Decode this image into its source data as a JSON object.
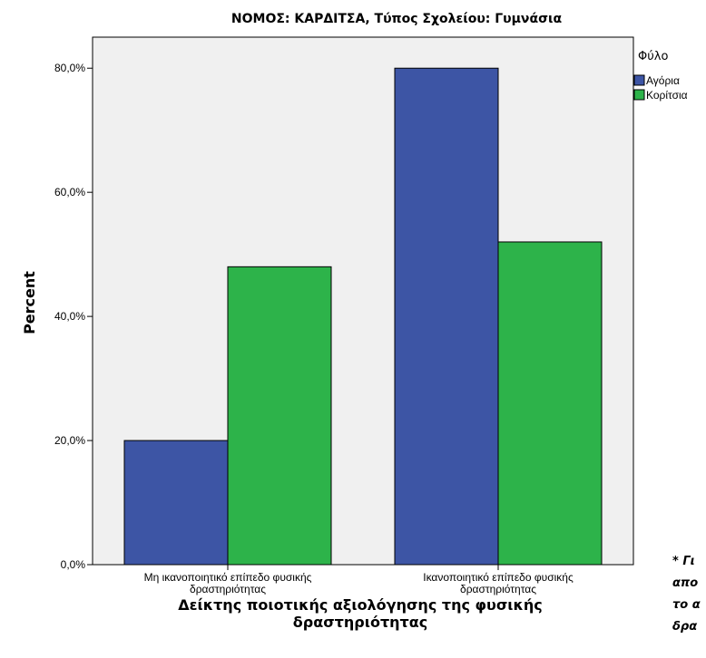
{
  "chart_data": {
    "type": "bar",
    "title": "ΝΟΜΟΣ: ΚΑΡΔΙΤΣΑ, Τύπος Σχολείου: Γυμνάσια",
    "xlabel_line1": "Δείκτης ποιοτικής αξιολόγησης της φυσικής",
    "xlabel_line2": "δραστηριότητας",
    "ylabel": "Percent",
    "categories": [
      {
        "line1": "Μη ικανοποιητικό επίπεδο φυσικής",
        "line2": "δραστηριότητας"
      },
      {
        "line1": "Ικανοποιητικό επίπεδο φυσικής",
        "line2": "δραστηριότητας"
      }
    ],
    "series": [
      {
        "name": "Αγόρια",
        "color": "#3d55a5",
        "values": [
          20,
          80
        ]
      },
      {
        "name": "Κορίτσια",
        "color": "#2db34a",
        "values": [
          48,
          52
        ]
      }
    ],
    "ylim": [
      0,
      85
    ],
    "yticks": [
      {
        "value": 0,
        "label": "0,0%"
      },
      {
        "value": 20,
        "label": "20,0%"
      },
      {
        "value": 40,
        "label": "40,0%"
      },
      {
        "value": 60,
        "label": "60,0%"
      },
      {
        "value": 80,
        "label": "80,0%"
      }
    ],
    "legend_title": "Φύλο",
    "legend_position": "top-right",
    "grid": false,
    "plot_background": "#f0f0f0"
  },
  "side_note": {
    "lines": [
      "* Γι",
      "απο",
      "το α",
      "δρα"
    ]
  }
}
